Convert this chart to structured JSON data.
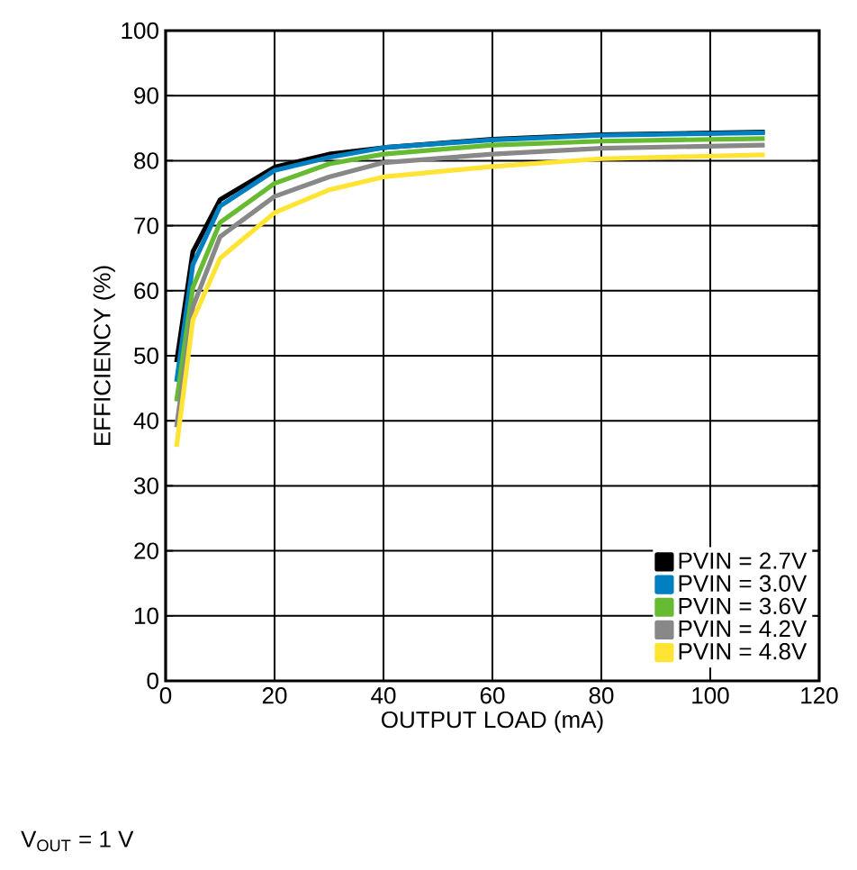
{
  "chart_data": {
    "type": "line",
    "xlabel": "OUTPUT LOAD (mA)",
    "ylabel": "EFFICIENCY (%)",
    "x": [
      2,
      5,
      10,
      20,
      30,
      40,
      60,
      80,
      110
    ],
    "series": [
      {
        "name": "PVIN = 2.7V",
        "color": "#000000",
        "values": [
          49,
          66,
          74,
          79,
          81,
          82,
          83.3,
          84,
          84.4
        ]
      },
      {
        "name": "PVIN = 3.0V",
        "color": "#0080c0",
        "values": [
          46,
          64,
          73,
          78.5,
          80.5,
          82,
          83.2,
          83.9,
          84.3
        ]
      },
      {
        "name": "PVIN = 3.6V",
        "color": "#66bb33",
        "values": [
          43,
          60.5,
          70.5,
          76.5,
          79.5,
          81,
          82.4,
          83,
          83.4
        ]
      },
      {
        "name": "PVIN = 4.2V",
        "color": "#888888",
        "values": [
          39,
          57.5,
          68.3,
          74.5,
          77.5,
          79.7,
          81,
          81.9,
          82.4
        ]
      },
      {
        "name": "PVIN = 4.8V",
        "color": "#ffe433",
        "values": [
          36,
          55.5,
          65,
          72,
          75.5,
          77.5,
          79.1,
          80.3,
          80.9
        ]
      }
    ],
    "xlim": [
      0,
      120
    ],
    "ylim": [
      0,
      100
    ],
    "xticks": [
      0,
      20,
      40,
      60,
      80,
      100,
      120
    ],
    "yticks": [
      0,
      10,
      20,
      30,
      40,
      50,
      60,
      70,
      80,
      90,
      100
    ],
    "grid": true,
    "legend": "bottom right",
    "marker": "none",
    "line_style": "solid",
    "annotations": [
      "V$_{OUT}$ = 1 V"
    ]
  }
}
